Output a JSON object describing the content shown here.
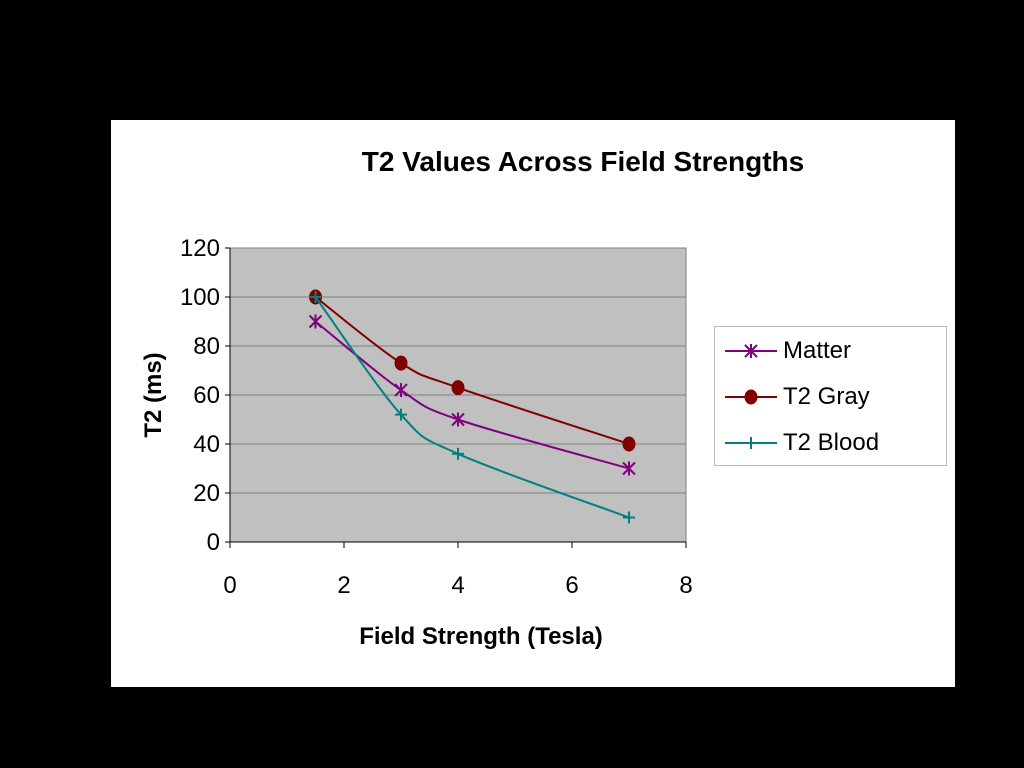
{
  "chart_data": {
    "type": "line",
    "title": "T2 Values Across Field Strengths",
    "xlabel": "Field Strength (Tesla)",
    "ylabel": "T2 (ms)",
    "xlim": [
      0,
      8
    ],
    "ylim": [
      0,
      120
    ],
    "x_ticks": [
      "0",
      "2",
      "4",
      "6",
      "8"
    ],
    "y_ticks": [
      "0",
      "20",
      "40",
      "60",
      "80",
      "100",
      "120"
    ],
    "grid": true,
    "legend_position": "right",
    "series": [
      {
        "name": "Matter",
        "marker": "asterisk",
        "color": "#800080",
        "x": [
          1.5,
          3,
          4,
          7
        ],
        "y": [
          90,
          62,
          50,
          30
        ]
      },
      {
        "name": "T2 Gray",
        "marker": "circle",
        "color": "#800000",
        "x": [
          1.5,
          3,
          4,
          7
        ],
        "y": [
          100,
          73,
          63,
          40
        ]
      },
      {
        "name": "T2 Blood",
        "marker": "plus",
        "color": "#008080",
        "x": [
          1.5,
          3,
          4,
          7
        ],
        "y": [
          100,
          52,
          36,
          10
        ]
      }
    ]
  },
  "colors": {
    "background": "#000000",
    "panel": "#ffffff",
    "plot_area": "#c0c0c0",
    "gridline": "#808080"
  }
}
